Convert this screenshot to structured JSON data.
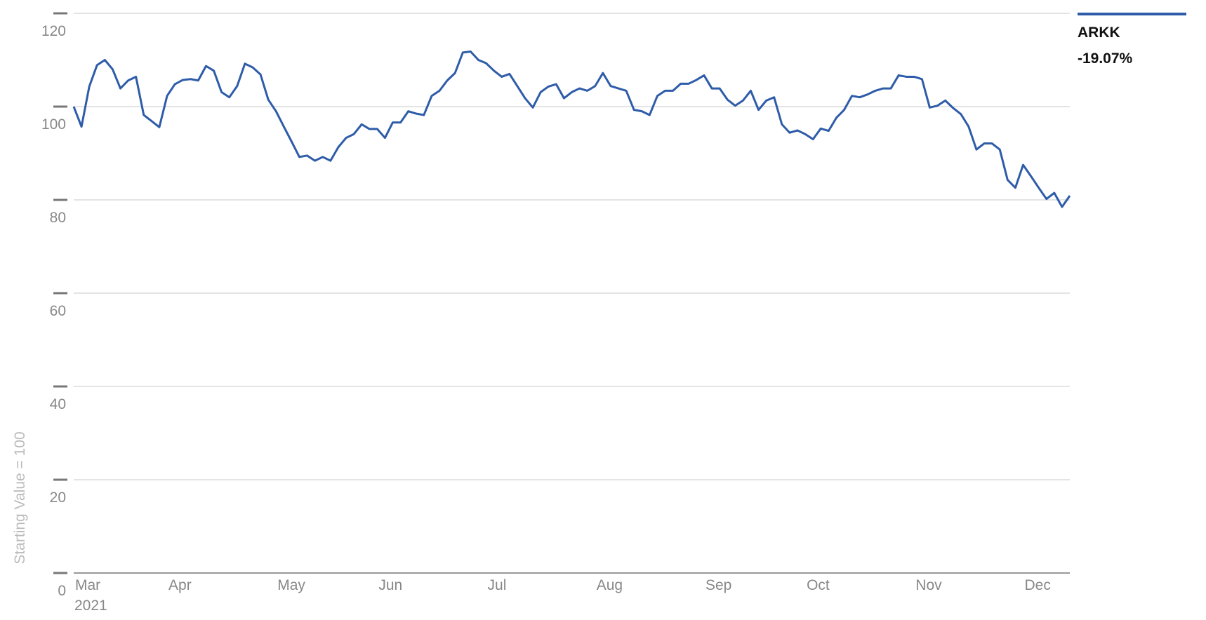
{
  "chart_data": {
    "type": "line",
    "y_axis_label": "Starting Value = 100",
    "x_axis_year": "2021",
    "annotation": "-19.07%",
    "ylim": [
      0,
      120
    ],
    "yticks": [
      0,
      20,
      40,
      60,
      80,
      100,
      120
    ],
    "grid": true,
    "categories": [
      "Mar",
      null,
      null,
      null,
      null,
      null,
      null,
      null,
      null,
      null,
      null,
      null,
      "Apr",
      null,
      null,
      null,
      null,
      null,
      null,
      null,
      null,
      null,
      null,
      null,
      null,
      null,
      "May",
      null,
      null,
      null,
      null,
      null,
      null,
      null,
      null,
      null,
      null,
      null,
      null,
      "Jun",
      null,
      null,
      null,
      null,
      null,
      null,
      null,
      null,
      null,
      null,
      null,
      null,
      null,
      "Jul",
      null,
      null,
      null,
      null,
      null,
      null,
      null,
      null,
      null,
      null,
      null,
      null,
      null,
      "Aug",
      null,
      null,
      null,
      null,
      null,
      null,
      null,
      null,
      null,
      null,
      null,
      null,
      null,
      "Sep",
      null,
      null,
      null,
      null,
      null,
      null,
      null,
      null,
      null,
      null,
      null,
      null,
      "Oct",
      null,
      null,
      null,
      null,
      null,
      null,
      null,
      null,
      null,
      null,
      null,
      null,
      null,
      "Nov",
      null,
      null,
      null,
      null,
      null,
      null,
      null,
      null,
      null,
      null,
      null,
      null,
      null,
      "Dec",
      null,
      null,
      null,
      null,
      null,
      null
    ],
    "series": [
      {
        "name": "ARKK",
        "color": "#2e5ca8",
        "values": [
          100,
          95.7,
          104.3,
          108.9,
          110,
          108,
          103.9,
          105.6,
          106.4,
          98.2,
          96.9,
          95.6,
          102.3,
          104.8,
          105.7,
          105.9,
          105.6,
          108.7,
          107.7,
          103.1,
          102,
          104.4,
          109.2,
          108.4,
          106.9,
          101.5,
          99,
          95.7,
          92.5,
          89.2,
          89.5,
          88.4,
          89.2,
          88.4,
          91.3,
          93.3,
          94.1,
          96.2,
          95.2,
          95.2,
          93.3,
          96.6,
          96.6,
          99,
          98.5,
          98.2,
          102.3,
          103.4,
          105.6,
          107.2,
          111.6,
          111.8,
          110,
          109.3,
          107.7,
          106.4,
          107,
          104.4,
          101.8,
          99.8,
          103.1,
          104.3,
          104.8,
          101.8,
          103.1,
          103.9,
          103.4,
          104.4,
          107.2,
          104.4,
          103.9,
          103.4,
          99.3,
          99,
          98.2,
          102.3,
          103.4,
          103.4,
          104.9,
          104.9,
          105.7,
          106.7,
          103.9,
          103.9,
          101.5,
          100.2,
          101.3,
          103.4,
          99.3,
          101.3,
          102,
          96.2,
          94.4,
          94.9,
          94.1,
          93,
          95.3,
          94.8,
          97.6,
          99.3,
          102.3,
          102,
          102.6,
          103.4,
          103.9,
          103.9,
          106.7,
          106.4,
          106.4,
          105.9,
          99.8,
          100.2,
          101.3,
          99.7,
          98.4,
          95.7,
          90.8,
          92.1,
          92.1,
          90.8,
          84.3,
          82.6,
          87.5,
          85.1,
          82.6,
          80.2,
          81.5,
          78.5,
          80.9
        ]
      }
    ]
  }
}
